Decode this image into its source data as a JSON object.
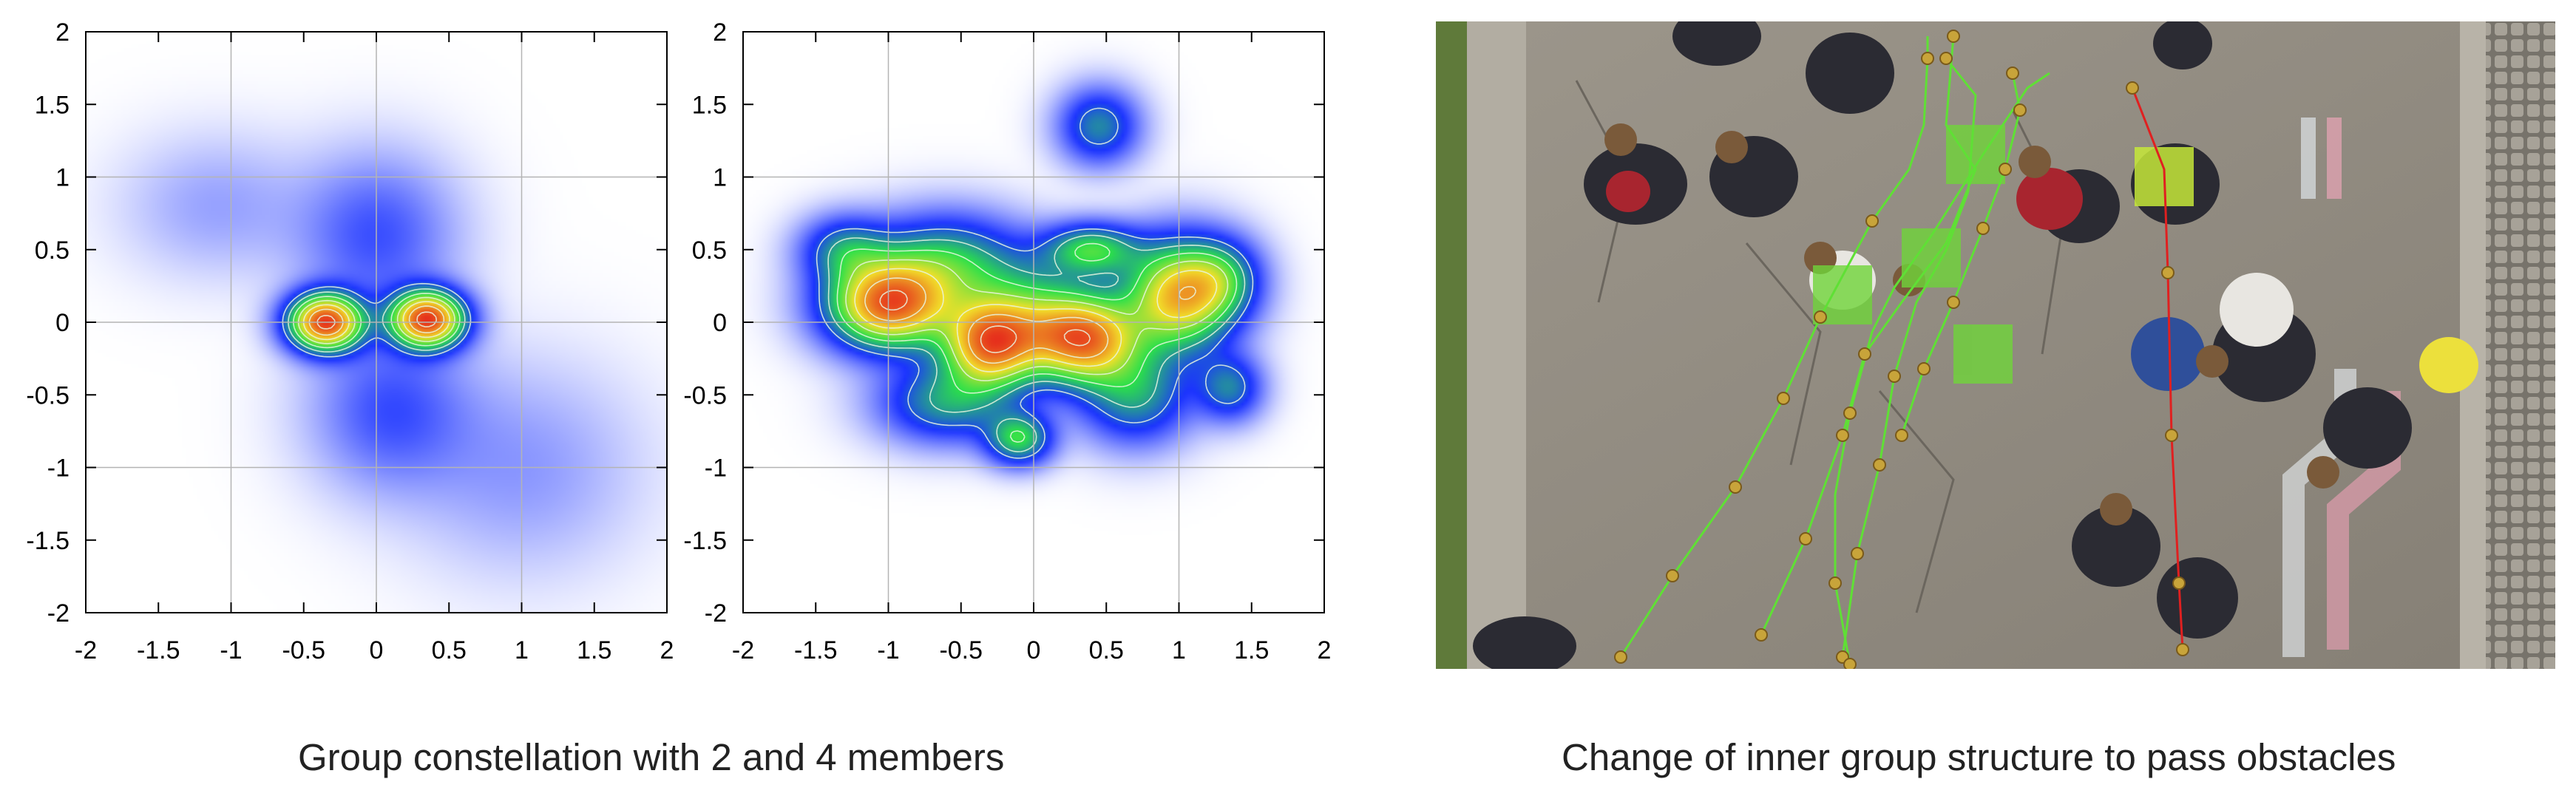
{
  "captions": {
    "left": "Group constellation with 2 and 4 members",
    "right": "Change of inner group structure to pass obstacles"
  },
  "chart_data": [
    {
      "type": "heatmap",
      "title": "",
      "xlabel": "",
      "ylabel": "",
      "xlim": [
        -2,
        2
      ],
      "ylim": [
        -2,
        2
      ],
      "xticks": [
        "-2",
        "-1.5",
        "-1",
        "-0.5",
        "0",
        "0.5",
        "1",
        "1.5",
        "2"
      ],
      "yticks": [
        "2",
        "1.5",
        "1",
        "0.5",
        "0",
        "-0.5",
        "-1",
        "-1.5",
        "-2"
      ],
      "grid": true,
      "colormap": [
        "#ffffff",
        "#1b33ff",
        "#2be04a",
        "#f2e02a",
        "#e6301c"
      ],
      "contour_color": "#e8f5e0",
      "peaks": [
        {
          "x": -0.35,
          "y": 0.0,
          "sx": 0.17,
          "sy": 0.13,
          "amp": 1.0
        },
        {
          "x": 0.35,
          "y": 0.02,
          "sx": 0.17,
          "sy": 0.13,
          "amp": 1.0
        }
      ],
      "haze": [
        {
          "x": 0.0,
          "y": 0.6,
          "sx": 0.35,
          "sy": 0.35,
          "amp": 0.15
        },
        {
          "x": 0.1,
          "y": -0.6,
          "sx": 0.35,
          "sy": 0.35,
          "amp": 0.15
        },
        {
          "x": -1.1,
          "y": 0.8,
          "sx": 0.4,
          "sy": 0.3,
          "amp": 0.06
        },
        {
          "x": 1.0,
          "y": -1.0,
          "sx": 0.5,
          "sy": 0.45,
          "amp": 0.07
        }
      ]
    },
    {
      "type": "heatmap",
      "title": "",
      "xlabel": "",
      "ylabel": "",
      "xlim": [
        -2,
        2
      ],
      "ylim": [
        -2,
        2
      ],
      "xticks": [
        "-2",
        "-1.5",
        "-1",
        "-0.5",
        "0",
        "0.5",
        "1",
        "1.5",
        "2"
      ],
      "yticks": [
        "2",
        "1.5",
        "1",
        "0.5",
        "0",
        "-0.5",
        "-1",
        "-1.5",
        "-2"
      ],
      "grid": true,
      "colormap": [
        "#ffffff",
        "#1b33ff",
        "#2be04a",
        "#f2e02a",
        "#e6301c"
      ],
      "contour_color": "#e8f5e0",
      "peaks": [
        {
          "x": -1.0,
          "y": 0.12,
          "sx": 0.28,
          "sy": 0.2,
          "amp": 0.95
        },
        {
          "x": -0.3,
          "y": -0.15,
          "sx": 0.22,
          "sy": 0.2,
          "amp": 0.85
        },
        {
          "x": 0.35,
          "y": -0.12,
          "sx": 0.25,
          "sy": 0.2,
          "amp": 0.85
        },
        {
          "x": 1.0,
          "y": 0.18,
          "sx": 0.25,
          "sy": 0.25,
          "amp": 0.8
        },
        {
          "x": 0.4,
          "y": 0.5,
          "sx": 0.22,
          "sy": 0.12,
          "amp": 0.45
        },
        {
          "x": -0.6,
          "y": 0.4,
          "sx": 0.35,
          "sy": 0.22,
          "amp": 0.42
        },
        {
          "x": 0.0,
          "y": 0.05,
          "sx": 0.3,
          "sy": 0.25,
          "amp": 0.35
        },
        {
          "x": -0.1,
          "y": -0.8,
          "sx": 0.15,
          "sy": 0.12,
          "amp": 0.45
        },
        {
          "x": -0.6,
          "y": -0.55,
          "sx": 0.3,
          "sy": 0.18,
          "amp": 0.35
        },
        {
          "x": 0.7,
          "y": -0.5,
          "sx": 0.25,
          "sy": 0.22,
          "amp": 0.35
        },
        {
          "x": 1.35,
          "y": -0.45,
          "sx": 0.15,
          "sy": 0.15,
          "amp": 0.3
        },
        {
          "x": -1.3,
          "y": 0.5,
          "sx": 0.2,
          "sy": 0.15,
          "amp": 0.3
        },
        {
          "x": 0.45,
          "y": 1.35,
          "sx": 0.18,
          "sy": 0.17,
          "amp": 0.32
        },
        {
          "x": 1.3,
          "y": 0.3,
          "sx": 0.18,
          "sy": 0.18,
          "amp": 0.3
        }
      ],
      "haze": []
    }
  ]
}
